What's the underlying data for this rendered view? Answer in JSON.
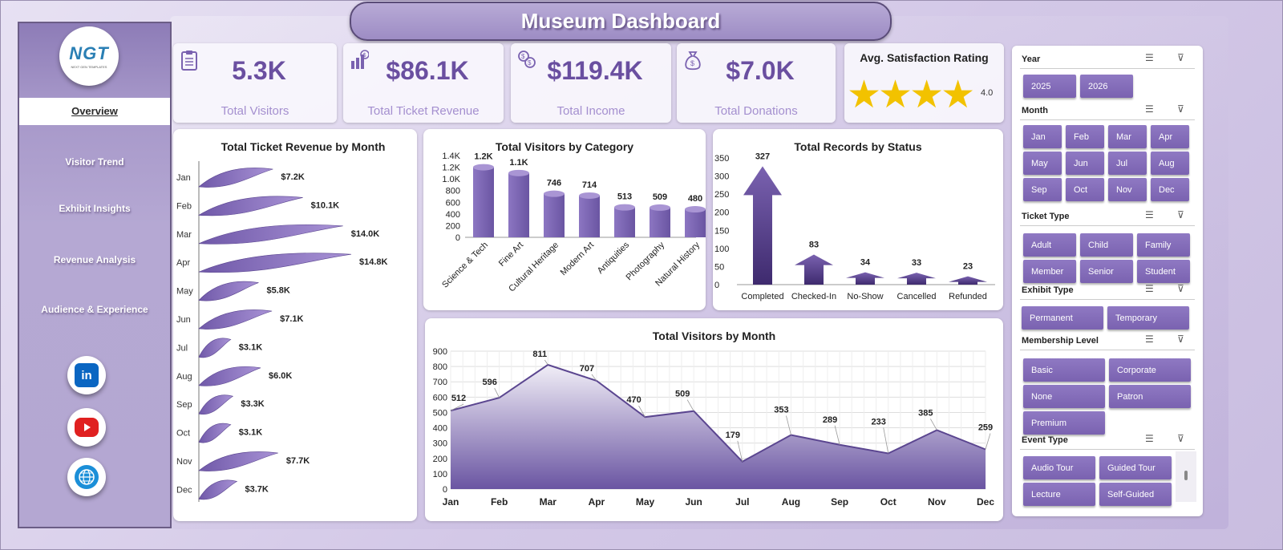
{
  "title": "Museum Dashboard",
  "logo_text": "NGT",
  "logo_sub": "NEXT GEN TEMPLATES",
  "nav": [
    "Overview",
    "Visitor Trend",
    "Exhibit Insights",
    "Revenue Analysis",
    "Audience & Experience"
  ],
  "kpis": [
    {
      "value": "5.3K",
      "label": "Total Visitors",
      "icon": "clipboard-icon"
    },
    {
      "value": "$86.1K",
      "label": "Total Ticket Revenue",
      "icon": "money-chart-icon"
    },
    {
      "value": "$119.4K",
      "label": "Total Income",
      "icon": "coins-icon"
    },
    {
      "value": "$7.0K",
      "label": "Total Donations",
      "icon": "money-bag-icon"
    }
  ],
  "rating": {
    "title": "Avg. Satisfaction Rating",
    "value": "4.0",
    "stars": 4
  },
  "colors": {
    "accent": "#6a4fa0",
    "chip": "#8a73c0",
    "star": "#f2c200"
  },
  "chart_data": [
    {
      "type": "bar",
      "title": "Total Ticket Revenue  by Month",
      "categories": [
        "Jan",
        "Feb",
        "Mar",
        "Apr",
        "May",
        "Jun",
        "Jul",
        "Aug",
        "Sep",
        "Oct",
        "Nov",
        "Dec"
      ],
      "values": [
        7.2,
        10.1,
        14.0,
        14.8,
        5.8,
        7.1,
        3.1,
        6.0,
        3.3,
        3.1,
        7.7,
        3.7
      ],
      "labels": [
        "$7.2K",
        "$10.1K",
        "$14.0K",
        "$14.8K",
        "$5.8K",
        "$7.1K",
        "$3.1K",
        "$6.0K",
        "$3.3K",
        "$3.1K",
        "$7.7K",
        "$3.7K"
      ]
    },
    {
      "type": "bar",
      "title": "Total Visitors by Category",
      "categories": [
        "Science & Tech",
        "Fine Art",
        "Cultural Heritage",
        "Modern Art",
        "Antiquities",
        "Photography",
        "Natural History"
      ],
      "values": [
        1200,
        1100,
        746,
        714,
        513,
        509,
        480
      ],
      "labels": [
        "1.2K",
        "1.1K",
        "746",
        "714",
        "513",
        "509",
        "480"
      ],
      "yticks": [
        "0",
        "200",
        "400",
        "600",
        "800",
        "1.0K",
        "1.2K",
        "1.4K"
      ],
      "ylim": [
        0,
        1400
      ]
    },
    {
      "type": "bar",
      "title": "Total Records by Status",
      "categories": [
        "Completed",
        "Checked-In",
        "No-Show",
        "Cancelled",
        "Refunded"
      ],
      "values": [
        327,
        83,
        34,
        33,
        23
      ],
      "yticks": [
        "0",
        "50",
        "100",
        "150",
        "200",
        "250",
        "300",
        "350"
      ],
      "ylim": [
        0,
        350
      ]
    },
    {
      "type": "area",
      "title": "Total Visitors by Month",
      "categories": [
        "Jan",
        "Feb",
        "Mar",
        "Apr",
        "May",
        "Jun",
        "Jul",
        "Aug",
        "Sep",
        "Oct",
        "Nov",
        "Dec"
      ],
      "values": [
        512,
        596,
        811,
        707,
        470,
        509,
        179,
        353,
        289,
        233,
        385,
        259
      ],
      "yticks": [
        "0",
        "100",
        "200",
        "300",
        "400",
        "500",
        "600",
        "700",
        "800",
        "900"
      ],
      "ylim": [
        0,
        900
      ],
      "grid": true
    }
  ],
  "slicers": {
    "year": {
      "label": "Year",
      "items": [
        "2025",
        "2026"
      ]
    },
    "month": {
      "label": "Month",
      "items": [
        "Jan",
        "Feb",
        "Mar",
        "Apr",
        "May",
        "Jun",
        "Jul",
        "Aug",
        "Sep",
        "Oct",
        "Nov",
        "Dec"
      ]
    },
    "ticket_type": {
      "label": "Ticket Type",
      "items": [
        "Adult",
        "Child",
        "Family",
        "Member",
        "Senior",
        "Student"
      ]
    },
    "exhibit_type": {
      "label": "Exhibit Type",
      "items": [
        "Permanent",
        "Temporary"
      ]
    },
    "membership": {
      "label": "Membership Level",
      "items": [
        "Basic",
        "Corporate",
        "None",
        "Patron",
        "Premium"
      ]
    },
    "event_type": {
      "label": "Event Type",
      "items": [
        "Audio Tour",
        "Guided Tour",
        "Lecture",
        "Self-Guided"
      ]
    }
  }
}
